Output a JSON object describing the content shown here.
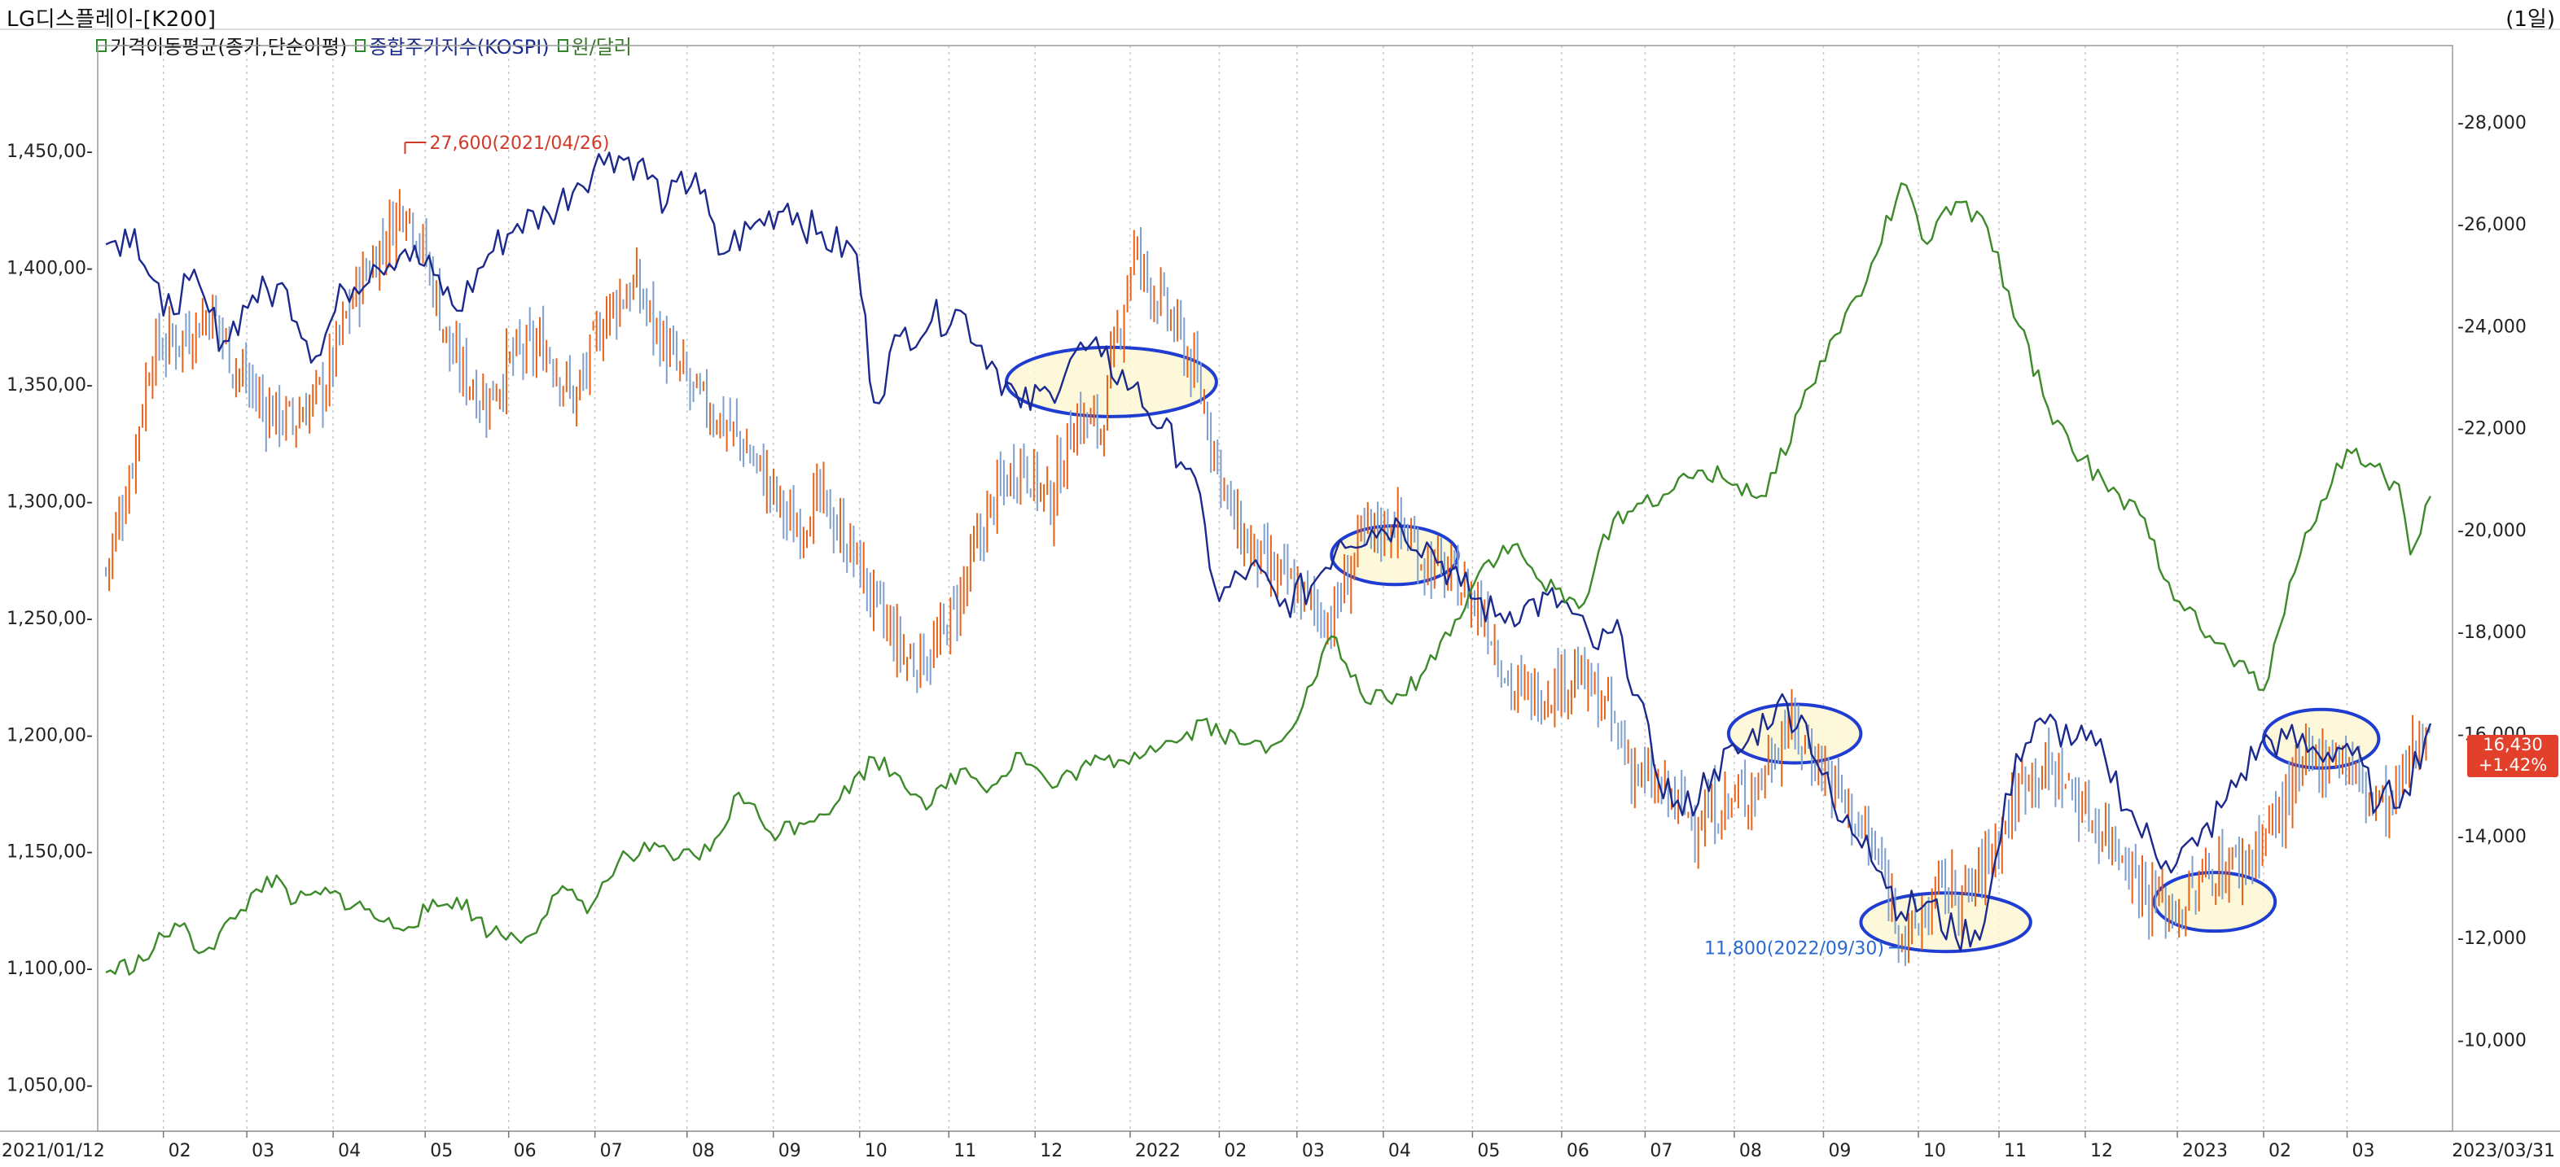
{
  "header": {
    "title": "LG디스플레이-[K200]",
    "period": "(1일)"
  },
  "legend": [
    {
      "label": "가격이동평균(종가,단순이평)",
      "color": "#2a8a2a",
      "text_color": "#111111"
    },
    {
      "label": "종합주가지수(KOSPI)",
      "color": "#2a8a2a",
      "text_color": "#1a2a8a"
    },
    {
      "label": "원/달러",
      "color": "#2a8a2a",
      "text_color": "#3a7a2a"
    }
  ],
  "price_tag": {
    "price": "16,430",
    "change": "+1.42%",
    "color": "#e2402a"
  },
  "colors": {
    "up": "#e8631a",
    "down": "#7f9fcc",
    "kospi": "#1b2a8c",
    "usdkrw": "#3d8a2a",
    "ellipse": "#1f3dd0",
    "ellipse_fill": "#fbf7d2",
    "grid": "#c8c8c8",
    "max_label": "#d03a2a",
    "min_label": "#2a6ad0"
  },
  "chart_data": {
    "type": "line",
    "left_axis": {
      "ticks": [
        "1,050,00-",
        "1,100,00-",
        "1,150,00-",
        "1,200,00-",
        "1,250,00-",
        "1,300,00-",
        "1,350,00-",
        "1,400,00-",
        "1,450,00-"
      ],
      "values": [
        1050,
        1100,
        1150,
        1200,
        1250,
        1300,
        1350,
        1400,
        1450
      ],
      "range": [
        1030,
        1495
      ]
    },
    "right_axis": {
      "ticks": [
        "-10,000",
        "-12,000",
        "-14,000",
        "-16,000",
        "-18,000",
        "-20,000",
        "-22,000",
        "-24,000",
        "-26,000",
        "-28,000"
      ],
      "values": [
        10000,
        12000,
        14000,
        16000,
        18000,
        20000,
        22000,
        24000,
        26000,
        28000
      ],
      "range": [
        8200,
        29500
      ]
    },
    "x_axis": {
      "ticks": [
        "2021/01/12",
        "02",
        "03",
        "04",
        "05",
        "06",
        "07",
        "08",
        "09",
        "10",
        "11",
        "12",
        "2022",
        "02",
        "03",
        "04",
        "05",
        "06",
        "07",
        "08",
        "09",
        "10",
        "11",
        "12",
        "2023",
        "02",
        "03",
        "2023/03/31"
      ],
      "range": [
        "2021/01/12",
        "2023/03/31"
      ]
    },
    "series": [
      {
        "name": "LG디스플레이",
        "kind": "candle_close",
        "axis": "right",
        "points": [
          [
            "2021/01/12",
            19200
          ],
          [
            "2021/01/20",
            21000
          ],
          [
            "2021/01/28",
            23500
          ],
          [
            "2021/02/08",
            23800
          ],
          [
            "2021/02/18",
            24300
          ],
          [
            "2021/02/26",
            23200
          ],
          [
            "2021/03/08",
            22400
          ],
          [
            "2021/03/18",
            22100
          ],
          [
            "2021/03/29",
            22800
          ],
          [
            "2021/04/08",
            24600
          ],
          [
            "2021/04/16",
            25400
          ],
          [
            "2021/04/26",
            26500
          ],
          [
            "2021/05/04",
            25200
          ],
          [
            "2021/05/12",
            23400
          ],
          [
            "2021/05/24",
            22500
          ],
          [
            "2021/06/03",
            23400
          ],
          [
            "2021/06/14",
            23600
          ],
          [
            "2021/06/24",
            22500
          ],
          [
            "2021/07/05",
            24300
          ],
          [
            "2021/07/15",
            24800
          ],
          [
            "2021/07/26",
            23500
          ],
          [
            "2021/08/05",
            22600
          ],
          [
            "2021/08/17",
            22000
          ],
          [
            "2021/08/27",
            21200
          ],
          [
            "2021/09/08",
            20000
          ],
          [
            "2021/09/17",
            20600
          ],
          [
            "2021/09/29",
            19500
          ],
          [
            "2021/10/08",
            18300
          ],
          [
            "2021/10/18",
            17400
          ],
          [
            "2021/10/27",
            17600
          ],
          [
            "2021/11/05",
            18700
          ],
          [
            "2021/11/16",
            20500
          ],
          [
            "2021/11/26",
            21400
          ],
          [
            "2021/12/06",
            20500
          ],
          [
            "2021/12/15",
            22200
          ],
          [
            "2021/12/24",
            22000
          ],
          [
            "2022/01/04",
            25500
          ],
          [
            "2022/01/12",
            24600
          ],
          [
            "2022/01/20",
            23800
          ],
          [
            "2022/01/28",
            22600
          ],
          [
            "2022/02/08",
            20100
          ],
          [
            "2022/02/18",
            19300
          ],
          [
            "2022/03/02",
            18800
          ],
          [
            "2022/03/14",
            18200
          ],
          [
            "2022/03/24",
            19800
          ],
          [
            "2022/04/05",
            20200
          ],
          [
            "2022/04/15",
            19400
          ],
          [
            "2022/04/26",
            19000
          ],
          [
            "2022/05/06",
            18400
          ],
          [
            "2022/05/16",
            16800
          ],
          [
            "2022/05/26",
            16800
          ],
          [
            "2022/06/07",
            17200
          ],
          [
            "2022/06/17",
            16500
          ],
          [
            "2022/06/28",
            15200
          ],
          [
            "2022/07/08",
            14800
          ],
          [
            "2022/07/19",
            14300
          ],
          [
            "2022/07/29",
            14600
          ],
          [
            "2022/08/09",
            15000
          ],
          [
            "2022/08/19",
            16200
          ],
          [
            "2022/08/30",
            15500
          ],
          [
            "2022/09/08",
            14700
          ],
          [
            "2022/09/20",
            13500
          ],
          [
            "2022/09/30",
            11900
          ],
          [
            "2022/10/12",
            13000
          ],
          [
            "2022/10/21",
            12800
          ],
          [
            "2022/11/01",
            14000
          ],
          [
            "2022/11/11",
            15300
          ],
          [
            "2022/11/22",
            15200
          ],
          [
            "2022/12/02",
            14400
          ],
          [
            "2022/12/13",
            13800
          ],
          [
            "2022/12/23",
            12800
          ],
          [
            "2023/01/03",
            12500
          ],
          [
            "2023/01/13",
            13300
          ],
          [
            "2023/01/26",
            13500
          ],
          [
            "2023/02/06",
            14400
          ],
          [
            "2023/02/16",
            15400
          ],
          [
            "2023/02/27",
            15700
          ],
          [
            "2023/03/09",
            14800
          ],
          [
            "2023/03/17",
            14500
          ],
          [
            "2023/03/24",
            15500
          ],
          [
            "2023/03/31",
            16430
          ]
        ]
      },
      {
        "name": "종합주가지수(KOSPI)",
        "kind": "line",
        "axis": "right",
        "points": [
          [
            "2021/01/12",
            25600
          ],
          [
            "2021/01/22",
            25900
          ],
          [
            "2021/02/01",
            24200
          ],
          [
            "2021/02/10",
            24900
          ],
          [
            "2021/02/22",
            23700
          ],
          [
            "2021/03/04",
            24600
          ],
          [
            "2021/03/16",
            24700
          ],
          [
            "2021/03/26",
            23400
          ],
          [
            "2021/04/05",
            24700
          ],
          [
            "2021/04/15",
            25200
          ],
          [
            "2021/04/26",
            25500
          ],
          [
            "2021/05/06",
            25000
          ],
          [
            "2021/05/14",
            24300
          ],
          [
            "2021/05/25",
            25400
          ],
          [
            "2021/06/04",
            26000
          ],
          [
            "2021/06/15",
            26200
          ],
          [
            "2021/06/25",
            26800
          ],
          [
            "2021/07/06",
            27400
          ],
          [
            "2021/07/16",
            27200
          ],
          [
            "2021/07/26",
            26400
          ],
          [
            "2021/08/05",
            27000
          ],
          [
            "2021/08/13",
            25400
          ],
          [
            "2021/08/24",
            25900
          ],
          [
            "2021/09/06",
            26400
          ],
          [
            "2021/09/16",
            25800
          ],
          [
            "2021/09/30",
            25400
          ],
          [
            "2021/10/06",
            22500
          ],
          [
            "2021/10/15",
            23800
          ],
          [
            "2021/10/26",
            24100
          ],
          [
            "2021/11/05",
            24300
          ],
          [
            "2021/11/16",
            23300
          ],
          [
            "2021/11/26",
            22400
          ],
          [
            "2021/12/06",
            22700
          ],
          [
            "2021/12/15",
            23500
          ],
          [
            "2021/12/24",
            23400
          ],
          [
            "2022/01/04",
            22800
          ],
          [
            "2022/01/14",
            22000
          ],
          [
            "2022/01/24",
            21200
          ],
          [
            "2022/02/03",
            18600
          ],
          [
            "2022/02/14",
            19300
          ],
          [
            "2022/02/24",
            18500
          ],
          [
            "2022/03/07",
            18900
          ],
          [
            "2022/03/17",
            19800
          ],
          [
            "2022/03/28",
            20000
          ],
          [
            "2022/04/07",
            20100
          ],
          [
            "2022/04/18",
            19600
          ],
          [
            "2022/04/28",
            18900
          ],
          [
            "2022/05/10",
            18300
          ],
          [
            "2022/05/20",
            18500
          ],
          [
            "2022/06/02",
            18600
          ],
          [
            "2022/06/13",
            17700
          ],
          [
            "2022/06/23",
            17900
          ],
          [
            "2022/07/04",
            15400
          ],
          [
            "2022/07/14",
            14400
          ],
          [
            "2022/07/25",
            15300
          ],
          [
            "2022/08/04",
            15700
          ],
          [
            "2022/08/16",
            16600
          ],
          [
            "2022/08/26",
            16200
          ],
          [
            "2022/09/06",
            14300
          ],
          [
            "2022/09/16",
            14000
          ],
          [
            "2022/09/28",
            12500
          ],
          [
            "2022/10/07",
            12700
          ],
          [
            "2022/10/17",
            12000
          ],
          [
            "2022/10/27",
            12300
          ],
          [
            "2022/11/07",
            15600
          ],
          [
            "2022/11/17",
            16200
          ],
          [
            "2022/11/28",
            15900
          ],
          [
            "2022/12/08",
            15500
          ],
          [
            "2022/12/19",
            14200
          ],
          [
            "2022/12/29",
            13500
          ],
          [
            "2023/01/09",
            13800
          ],
          [
            "2023/01/19",
            14700
          ],
          [
            "2023/01/31",
            15800
          ],
          [
            "2023/02/09",
            15900
          ],
          [
            "2023/02/20",
            15600
          ],
          [
            "2023/03/02",
            15800
          ],
          [
            "2023/03/13",
            14600
          ],
          [
            "2023/03/22",
            14900
          ],
          [
            "2023/03/31",
            16200
          ]
        ]
      },
      {
        "name": "원/달러",
        "kind": "line",
        "axis": "left",
        "points": [
          [
            "2021/01/12",
            1098
          ],
          [
            "2021/01/25",
            1103
          ],
          [
            "2021/02/05",
            1119
          ],
          [
            "2021/02/15",
            1107
          ],
          [
            "2021/02/26",
            1121
          ],
          [
            "2021/03/09",
            1139
          ],
          [
            "2021/03/19",
            1128
          ],
          [
            "2021/03/31",
            1132
          ],
          [
            "2021/04/12",
            1125
          ],
          [
            "2021/04/22",
            1117
          ],
          [
            "2021/05/04",
            1124
          ],
          [
            "2021/05/14",
            1130
          ],
          [
            "2021/05/26",
            1115
          ],
          [
            "2021/06/07",
            1113
          ],
          [
            "2021/06/18",
            1132
          ],
          [
            "2021/06/30",
            1127
          ],
          [
            "2021/07/09",
            1145
          ],
          [
            "2021/07/20",
            1150
          ],
          [
            "2021/07/30",
            1147
          ],
          [
            "2021/08/10",
            1150
          ],
          [
            "2021/08/20",
            1175
          ],
          [
            "2021/08/31",
            1158
          ],
          [
            "2021/09/10",
            1162
          ],
          [
            "2021/09/24",
            1172
          ],
          [
            "2021/10/06",
            1190
          ],
          [
            "2021/10/15",
            1182
          ],
          [
            "2021/10/26",
            1170
          ],
          [
            "2021/11/05",
            1185
          ],
          [
            "2021/11/16",
            1178
          ],
          [
            "2021/11/26",
            1192
          ],
          [
            "2021/12/07",
            1177
          ],
          [
            "2021/12/17",
            1186
          ],
          [
            "2021/12/30",
            1189
          ],
          [
            "2022/01/10",
            1195
          ],
          [
            "2022/01/21",
            1198
          ],
          [
            "2022/01/28",
            1206
          ],
          [
            "2022/02/10",
            1196
          ],
          [
            "2022/02/21",
            1195
          ],
          [
            "2022/03/04",
            1212
          ],
          [
            "2022/03/14",
            1242
          ],
          [
            "2022/03/24",
            1218
          ],
          [
            "2022/04/04",
            1213
          ],
          [
            "2022/04/14",
            1225
          ],
          [
            "2022/04/26",
            1249
          ],
          [
            "2022/05/06",
            1273
          ],
          [
            "2022/05/16",
            1281
          ],
          [
            "2022/05/26",
            1265
          ],
          [
            "2022/06/08",
            1254
          ],
          [
            "2022/06/20",
            1292
          ],
          [
            "2022/06/30",
            1299
          ],
          [
            "2022/07/11",
            1305
          ],
          [
            "2022/07/21",
            1313
          ],
          [
            "2022/08/02",
            1307
          ],
          [
            "2022/08/12",
            1302
          ],
          [
            "2022/08/24",
            1340
          ],
          [
            "2022/09/05",
            1371
          ],
          [
            "2022/09/16",
            1394
          ],
          [
            "2022/09/28",
            1436
          ],
          [
            "2022/10/07",
            1410
          ],
          [
            "2022/10/17",
            1428
          ],
          [
            "2022/10/28",
            1417
          ],
          [
            "2022/11/08",
            1375
          ],
          [
            "2022/11/18",
            1340
          ],
          [
            "2022/11/30",
            1318
          ],
          [
            "2022/12/09",
            1304
          ],
          [
            "2022/12/20",
            1294
          ],
          [
            "2022/12/30",
            1265
          ],
          [
            "2023/01/10",
            1245
          ],
          [
            "2023/01/20",
            1234
          ],
          [
            "2023/02/01",
            1219
          ],
          [
            "2023/02/10",
            1265
          ],
          [
            "2023/02/21",
            1300
          ],
          [
            "2023/03/02",
            1322
          ],
          [
            "2023/03/10",
            1316
          ],
          [
            "2023/03/15",
            1310
          ],
          [
            "2023/03/20",
            1307
          ],
          [
            "2023/03/24",
            1277
          ],
          [
            "2023/03/31",
            1302
          ]
        ]
      }
    ],
    "annotations": [
      {
        "text": "27,600(2021/04/26)",
        "date": "2021/04/26",
        "value": 27600,
        "axis": "right",
        "kind": "max"
      },
      {
        "text": "11,800(2022/09/30)",
        "date": "2022/09/30",
        "value": 11800,
        "axis": "right",
        "kind": "min"
      }
    ],
    "highlights": [
      {
        "from": "2021/11/21",
        "to": "2022/02/02",
        "center_value": 22900
      },
      {
        "from": "2022/03/14",
        "to": "2022/04/27",
        "center_value": 19500
      },
      {
        "from": "2022/07/30",
        "to": "2022/09/14",
        "center_value": 16000
      },
      {
        "from": "2022/09/14",
        "to": "2022/11/12",
        "center_value": 12300
      },
      {
        "from": "2022/12/25",
        "to": "2023/02/05",
        "center_value": 12700
      },
      {
        "from": "2023/02/01",
        "to": "2023/03/13",
        "center_value": 15900
      }
    ]
  }
}
